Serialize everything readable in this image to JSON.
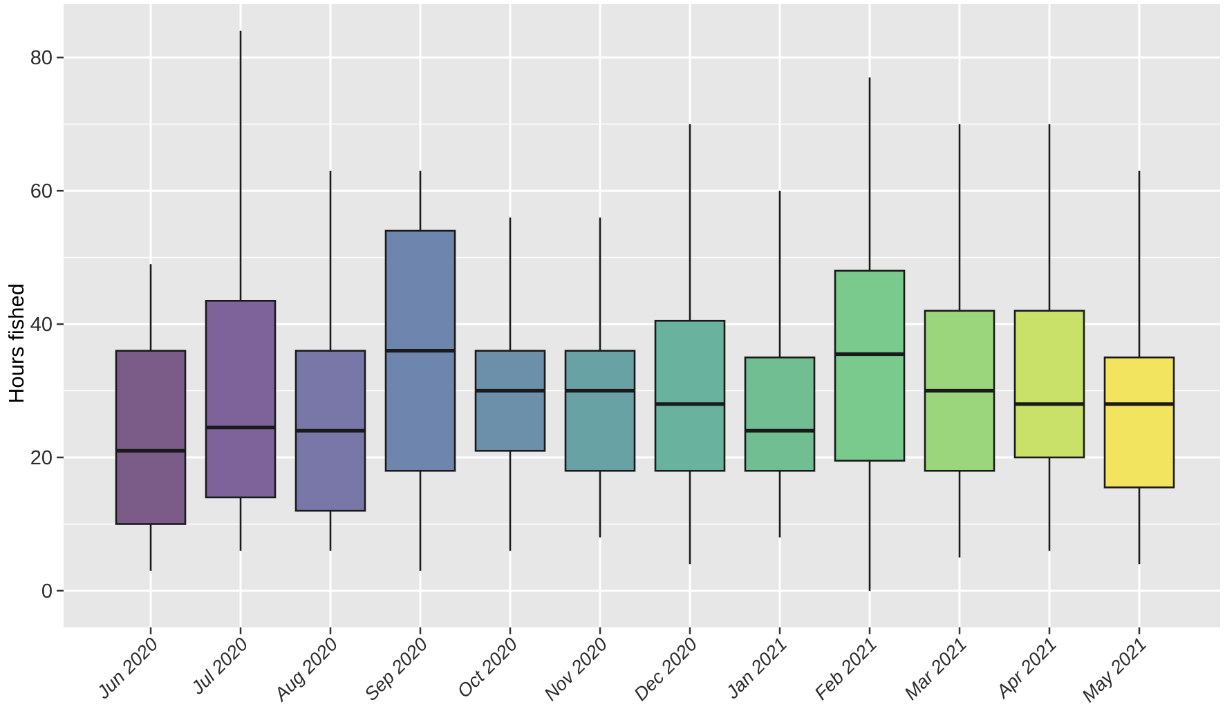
{
  "figure": {
    "background": "#FFFFFF",
    "panel_background": "#E7E7E7",
    "grid_color": "#FFFFFF",
    "box_outline_color": "#1A1A1A",
    "whisker_color": "#1A1A1A",
    "median_color": "#1A1A1A",
    "axis_text_color": "#2B2B2B",
    "axis_title_color": "#000000"
  },
  "chart_data": {
    "type": "boxplot",
    "title": "",
    "subtitle": "",
    "xlabel": "",
    "ylabel": "Hours fished",
    "legend": "none",
    "grid": "white major+minor horizontal lines, white major vertical line per category, grey panel",
    "y_ticks": [
      0,
      20,
      40,
      60,
      80
    ],
    "y_minor_ticks": [
      10,
      30,
      50,
      70
    ],
    "ylim": [
      -5.5,
      88
    ],
    "x_tick_style": "italic, rotated 45deg",
    "categories": [
      "Jun 2020",
      "Jul 2020",
      "Aug 2020",
      "Sep 2020",
      "Oct 2020",
      "Nov 2020",
      "Dec 2020",
      "Jan 2021",
      "Feb 2021",
      "Mar 2021",
      "Apr 2021",
      "May 2021"
    ],
    "series": [
      {
        "label": "Jun 2020",
        "min": 3,
        "q1": 10,
        "median": 21,
        "q3": 36,
        "max": 49,
        "fill": "#7B5C88"
      },
      {
        "label": "Jul 2020",
        "min": 6,
        "q1": 14,
        "median": 24.5,
        "q3": 43.5,
        "max": 84,
        "fill": "#7E639A"
      },
      {
        "label": "Aug 2020",
        "min": 6,
        "q1": 12,
        "median": 24,
        "q3": 36,
        "max": 63,
        "fill": "#7877A8"
      },
      {
        "label": "Sep 2020",
        "min": 3,
        "q1": 18,
        "median": 36,
        "q3": 54,
        "max": 63,
        "fill": "#6E86AE"
      },
      {
        "label": "Oct 2020",
        "min": 6,
        "q1": 21,
        "median": 30,
        "q3": 36,
        "max": 56,
        "fill": "#6C90A9"
      },
      {
        "label": "Nov 2020",
        "min": 8,
        "q1": 18,
        "median": 30,
        "q3": 36,
        "max": 56,
        "fill": "#68A2A4"
      },
      {
        "label": "Dec 2020",
        "min": 4,
        "q1": 18,
        "median": 28,
        "q3": 40.5,
        "max": 70,
        "fill": "#68B29E"
      },
      {
        "label": "Jan 2021",
        "min": 8,
        "q1": 18,
        "median": 24,
        "q3": 35,
        "max": 60,
        "fill": "#70BE92"
      },
      {
        "label": "Feb 2021",
        "min": 0,
        "q1": 19.5,
        "median": 35.5,
        "q3": 48,
        "max": 77,
        "fill": "#7ACA8D"
      },
      {
        "label": "Mar 2021",
        "min": 5,
        "q1": 18,
        "median": 30,
        "q3": 42,
        "max": 70,
        "fill": "#9BD67C"
      },
      {
        "label": "Apr 2021",
        "min": 6,
        "q1": 20,
        "median": 28,
        "q3": 42,
        "max": 70,
        "fill": "#C9E168"
      },
      {
        "label": "May 2021",
        "min": 4,
        "q1": 15.5,
        "median": 28,
        "q3": 35,
        "max": 63,
        "fill": "#F3E45F"
      }
    ]
  }
}
